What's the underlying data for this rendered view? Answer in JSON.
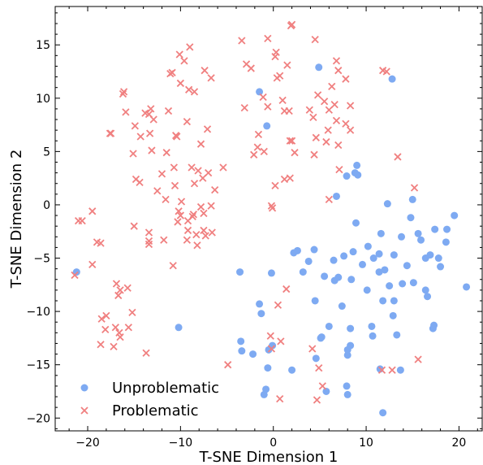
{
  "chart_data": {
    "type": "scatter",
    "title": "",
    "xlabel": "T-SNE Dimension 1",
    "ylabel": "T-SNE Dimension 2",
    "xlim": [
      -23.5,
      22.5
    ],
    "ylim": [
      -21.2,
      18.6
    ],
    "xticks": [
      -20,
      -10,
      0,
      10,
      20
    ],
    "yticks": [
      -20,
      -15,
      -10,
      -5,
      0,
      5,
      10,
      15
    ],
    "grid": false,
    "legend_position": "lower-left",
    "series": [
      {
        "name": "Unproblematic",
        "marker": "circle",
        "color": "#7eaaf2",
        "points": [
          [
            -21.2,
            -6.3
          ],
          [
            -10.2,
            -11.5
          ],
          [
            -3.6,
            -6.3
          ],
          [
            -3.5,
            -12.8
          ],
          [
            -3.4,
            -13.7
          ],
          [
            -2.2,
            -14.0
          ],
          [
            -1.5,
            10.6
          ],
          [
            -1.5,
            -9.3
          ],
          [
            -1.3,
            -10.2
          ],
          [
            -1.0,
            -17.8
          ],
          [
            -0.8,
            -17.3
          ],
          [
            -0.7,
            7.4
          ],
          [
            -0.6,
            -15.3
          ],
          [
            -0.5,
            -13.6
          ],
          [
            -0.2,
            -6.4
          ],
          [
            -0.1,
            -13.2
          ],
          [
            2.0,
            -15.5
          ],
          [
            2.2,
            -4.5
          ],
          [
            2.6,
            -4.3
          ],
          [
            3.2,
            -6.3
          ],
          [
            3.8,
            -5.3
          ],
          [
            4.4,
            -4.2
          ],
          [
            4.5,
            -9.0
          ],
          [
            4.6,
            -14.4
          ],
          [
            4.9,
            12.9
          ],
          [
            5.1,
            -12.5
          ],
          [
            5.2,
            -12.4
          ],
          [
            5.5,
            -6.7
          ],
          [
            5.7,
            -17.5
          ],
          [
            6.0,
            -11.4
          ],
          [
            6.5,
            -5.2
          ],
          [
            6.6,
            -7.1
          ],
          [
            6.8,
            0.8
          ],
          [
            7.0,
            -6.8
          ],
          [
            7.4,
            -9.5
          ],
          [
            7.6,
            -4.8
          ],
          [
            7.9,
            2.7
          ],
          [
            7.9,
            -17.0
          ],
          [
            8.0,
            -13.6
          ],
          [
            8.0,
            -14.1
          ],
          [
            8.0,
            -17.8
          ],
          [
            8.3,
            -11.6
          ],
          [
            8.3,
            -13.2
          ],
          [
            8.4,
            -7.0
          ],
          [
            8.6,
            -4.4
          ],
          [
            8.8,
            3.0
          ],
          [
            8.9,
            -1.7
          ],
          [
            9.0,
            3.7
          ],
          [
            9.1,
            2.8
          ],
          [
            9.6,
            -5.6
          ],
          [
            10.1,
            -8.0
          ],
          [
            10.2,
            -3.9
          ],
          [
            10.6,
            -11.4
          ],
          [
            10.7,
            -12.3
          ],
          [
            10.8,
            -5.0
          ],
          [
            11.4,
            -6.3
          ],
          [
            11.4,
            -4.6
          ],
          [
            11.5,
            -15.4
          ],
          [
            11.6,
            -2.7
          ],
          [
            11.8,
            -19.5
          ],
          [
            11.8,
            -9.0
          ],
          [
            12.0,
            -6.1
          ],
          [
            12.3,
            0.1
          ],
          [
            12.5,
            -7.6
          ],
          [
            12.8,
            11.8
          ],
          [
            12.9,
            -10.4
          ],
          [
            13.0,
            -4.7
          ],
          [
            13.0,
            -9.0
          ],
          [
            13.3,
            -12.2
          ],
          [
            13.7,
            -15.5
          ],
          [
            13.8,
            -3.0
          ],
          [
            13.9,
            -7.4
          ],
          [
            14.4,
            -5.7
          ],
          [
            14.8,
            -1.2
          ],
          [
            15.0,
            0.5
          ],
          [
            15.1,
            -7.3
          ],
          [
            15.6,
            -2.7
          ],
          [
            15.9,
            -3.3
          ],
          [
            16.4,
            -5.0
          ],
          [
            16.4,
            -8.0
          ],
          [
            16.6,
            -8.6
          ],
          [
            16.9,
            -4.7
          ],
          [
            17.2,
            -11.6
          ],
          [
            17.3,
            -11.3
          ],
          [
            17.4,
            -2.3
          ],
          [
            17.8,
            -5.0
          ],
          [
            18.0,
            -5.8
          ],
          [
            18.6,
            -3.5
          ],
          [
            18.7,
            -2.3
          ],
          [
            19.5,
            -1.0
          ],
          [
            20.8,
            -7.7
          ]
        ]
      },
      {
        "name": "Problematic",
        "marker": "x",
        "color": "#f08080",
        "points": [
          [
            -21.4,
            -6.6
          ],
          [
            -21.0,
            -1.5
          ],
          [
            -20.6,
            -1.5
          ],
          [
            -19.5,
            -0.6
          ],
          [
            -19.5,
            -5.6
          ],
          [
            -19.0,
            -3.5
          ],
          [
            -18.6,
            -3.6
          ],
          [
            -18.6,
            -13.1
          ],
          [
            -18.5,
            -10.7
          ],
          [
            -18.1,
            -11.7
          ],
          [
            -18.0,
            -10.4
          ],
          [
            -17.6,
            6.7
          ],
          [
            -17.5,
            6.7
          ],
          [
            -17.2,
            -13.3
          ],
          [
            -17.0,
            -11.5
          ],
          [
            -16.9,
            -7.4
          ],
          [
            -16.7,
            -8.5
          ],
          [
            -16.6,
            -12.0
          ],
          [
            -16.5,
            -8.0
          ],
          [
            -16.5,
            -12.4
          ],
          [
            -16.2,
            10.4
          ],
          [
            -16.1,
            10.6
          ],
          [
            -15.9,
            8.7
          ],
          [
            -15.7,
            -7.8
          ],
          [
            -15.6,
            -11.5
          ],
          [
            -15.2,
            -10.1
          ],
          [
            -15.1,
            4.8
          ],
          [
            -15.0,
            -2.0
          ],
          [
            -14.9,
            7.4
          ],
          [
            -14.8,
            2.4
          ],
          [
            -14.4,
            2.1
          ],
          [
            -14.3,
            6.4
          ],
          [
            -13.8,
            8.6
          ],
          [
            -13.7,
            -13.9
          ],
          [
            -13.4,
            8.5
          ],
          [
            -13.4,
            -2.6
          ],
          [
            -13.4,
            -3.4
          ],
          [
            -13.4,
            -3.7
          ],
          [
            -13.3,
            6.7
          ],
          [
            -13.2,
            9.0
          ],
          [
            -13.1,
            5.1
          ],
          [
            -12.9,
            8.0
          ],
          [
            -12.5,
            1.3
          ],
          [
            -12.0,
            2.9
          ],
          [
            -11.8,
            -3.3
          ],
          [
            -11.6,
            0.5
          ],
          [
            -11.5,
            4.9
          ],
          [
            -11.3,
            8.8
          ],
          [
            -11.1,
            12.3
          ],
          [
            -10.9,
            12.4
          ],
          [
            -10.8,
            -5.7
          ],
          [
            -10.7,
            3.5
          ],
          [
            -10.6,
            1.8
          ],
          [
            -10.5,
            6.5
          ],
          [
            -10.4,
            6.4
          ],
          [
            -10.3,
            -1.6
          ],
          [
            -10.2,
            -0.6
          ],
          [
            -10.1,
            14.1
          ],
          [
            -10.0,
            11.4
          ],
          [
            -10.0,
            -1.0
          ],
          [
            -9.9,
            0.3
          ],
          [
            -9.6,
            13.5
          ],
          [
            -9.3,
            7.8
          ],
          [
            -9.3,
            -3.3
          ],
          [
            -9.2,
            -2.4
          ],
          [
            -9.2,
            -1.5
          ],
          [
            -9.1,
            10.8
          ],
          [
            -9.0,
            14.8
          ],
          [
            -8.8,
            3.5
          ],
          [
            -8.7,
            -1.1
          ],
          [
            -8.6,
            -0.9
          ],
          [
            -8.5,
            10.6
          ],
          [
            -8.5,
            2.0
          ],
          [
            -8.3,
            -2.8
          ],
          [
            -8.2,
            -3.8
          ],
          [
            -8.1,
            3.2
          ],
          [
            -7.8,
            -0.2
          ],
          [
            -7.8,
            5.7
          ],
          [
            -7.6,
            2.5
          ],
          [
            -7.5,
            -2.4
          ],
          [
            -7.5,
            -0.8
          ],
          [
            -7.4,
            12.6
          ],
          [
            -7.3,
            -2.9
          ],
          [
            -7.1,
            7.1
          ],
          [
            -7.0,
            3.0
          ],
          [
            -6.7,
            11.9
          ],
          [
            -6.7,
            -0.1
          ],
          [
            -6.6,
            -2.6
          ],
          [
            -6.3,
            1.4
          ],
          [
            -5.4,
            3.5
          ],
          [
            -4.9,
            -15.0
          ],
          [
            -3.4,
            15.4
          ],
          [
            -3.1,
            9.1
          ],
          [
            -2.9,
            13.2
          ],
          [
            -2.4,
            12.8
          ],
          [
            -2.1,
            4.7
          ],
          [
            -1.7,
            5.4
          ],
          [
            -1.6,
            6.6
          ],
          [
            -1.1,
            10.1
          ],
          [
            -1.0,
            5.0
          ],
          [
            -0.6,
            15.6
          ],
          [
            -0.6,
            9.2
          ],
          [
            -0.3,
            -12.3
          ],
          [
            -0.2,
            -13.5
          ],
          [
            -0.2,
            -0.1
          ],
          [
            -0.1,
            -0.3
          ],
          [
            0.2,
            13.9
          ],
          [
            0.2,
            1.8
          ],
          [
            0.3,
            14.3
          ],
          [
            0.4,
            11.9
          ],
          [
            0.5,
            -9.4
          ],
          [
            0.7,
            12.1
          ],
          [
            0.7,
            -18.2
          ],
          [
            0.8,
            -12.8
          ],
          [
            1.0,
            9.8
          ],
          [
            1.2,
            2.4
          ],
          [
            1.2,
            8.8
          ],
          [
            1.4,
            -7.9
          ],
          [
            1.5,
            13.1
          ],
          [
            1.7,
            8.8
          ],
          [
            1.8,
            6.0
          ],
          [
            1.8,
            2.5
          ],
          [
            1.9,
            16.8
          ],
          [
            2.0,
            16.9
          ],
          [
            2.0,
            6.0
          ],
          [
            2.3,
            4.9
          ],
          [
            3.9,
            8.9
          ],
          [
            4.2,
            -13.5
          ],
          [
            4.3,
            8.2
          ],
          [
            4.4,
            4.7
          ],
          [
            4.5,
            15.5
          ],
          [
            4.6,
            6.3
          ],
          [
            4.7,
            -18.3
          ],
          [
            4.8,
            10.3
          ],
          [
            4.9,
            -15.3
          ],
          [
            5.3,
            -17.0
          ],
          [
            5.5,
            9.7
          ],
          [
            5.7,
            5.9
          ],
          [
            5.9,
            7.0
          ],
          [
            6.0,
            0.5
          ],
          [
            6.0,
            8.9
          ],
          [
            6.3,
            11.1
          ],
          [
            6.6,
            9.4
          ],
          [
            6.8,
            7.9
          ],
          [
            6.8,
            13.5
          ],
          [
            7.0,
            5.6
          ],
          [
            7.0,
            12.6
          ],
          [
            7.1,
            3.3
          ],
          [
            7.8,
            11.8
          ],
          [
            7.8,
            7.6
          ],
          [
            8.3,
            9.3
          ],
          [
            8.3,
            7.0
          ],
          [
            11.7,
            -15.5
          ],
          [
            11.8,
            12.6
          ],
          [
            12.2,
            12.5
          ],
          [
            12.8,
            -15.5
          ],
          [
            13.4,
            4.5
          ],
          [
            15.2,
            1.6
          ],
          [
            15.6,
            -14.5
          ]
        ]
      }
    ]
  }
}
